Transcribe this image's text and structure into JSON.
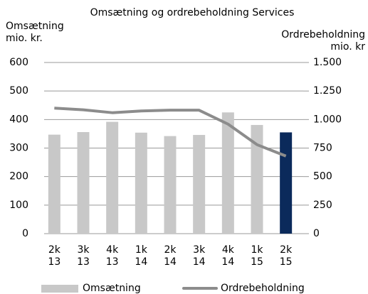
{
  "chart_data": {
    "type": "bar_line",
    "title": "Omsætning og ordrebeholdning Services",
    "y_label": [
      "Omsætning",
      "mio. kr."
    ],
    "y2_label": [
      "Ordrebeholdning",
      "mio. kr"
    ],
    "categories": [
      [
        "2k",
        "13"
      ],
      [
        "3k",
        "13"
      ],
      [
        "4k",
        "13"
      ],
      [
        "1k",
        "14"
      ],
      [
        "2k",
        "14"
      ],
      [
        "3k",
        "14"
      ],
      [
        "4k",
        "14"
      ],
      [
        "1k",
        "15"
      ],
      [
        "2k",
        "15"
      ]
    ],
    "series": [
      {
        "name": "Omsætning",
        "type": "bar",
        "color": "#c8c8c8",
        "colors": [
          "#c8c8c8",
          "#c8c8c8",
          "#c8c8c8",
          "#c8c8c8",
          "#c8c8c8",
          "#c8c8c8",
          "#c8c8c8",
          "#c8c8c8",
          "#0b2a5b"
        ],
        "values": [
          347,
          356,
          392,
          354,
          342,
          346,
          425,
          381,
          355
        ]
      },
      {
        "name": "Ordrebeholdning",
        "type": "line",
        "axis": "y2",
        "color": "#8c8c8c",
        "values": [
          1100,
          1085,
          1060,
          1075,
          1082,
          1082,
          960,
          780,
          680
        ]
      }
    ],
    "ylim": [
      0,
      600
    ],
    "yticks": [
      0,
      100,
      200,
      300,
      400,
      500,
      600
    ],
    "y2lim": [
      0,
      1500
    ],
    "y2ticks": [
      0,
      250,
      500,
      750,
      {
        "value": 1000,
        "label": "1.000"
      },
      {
        "value": 1250,
        "label": "1.250"
      },
      {
        "value": 1500,
        "label": "1.500"
      }
    ],
    "grid": true,
    "legend": "bottom"
  }
}
